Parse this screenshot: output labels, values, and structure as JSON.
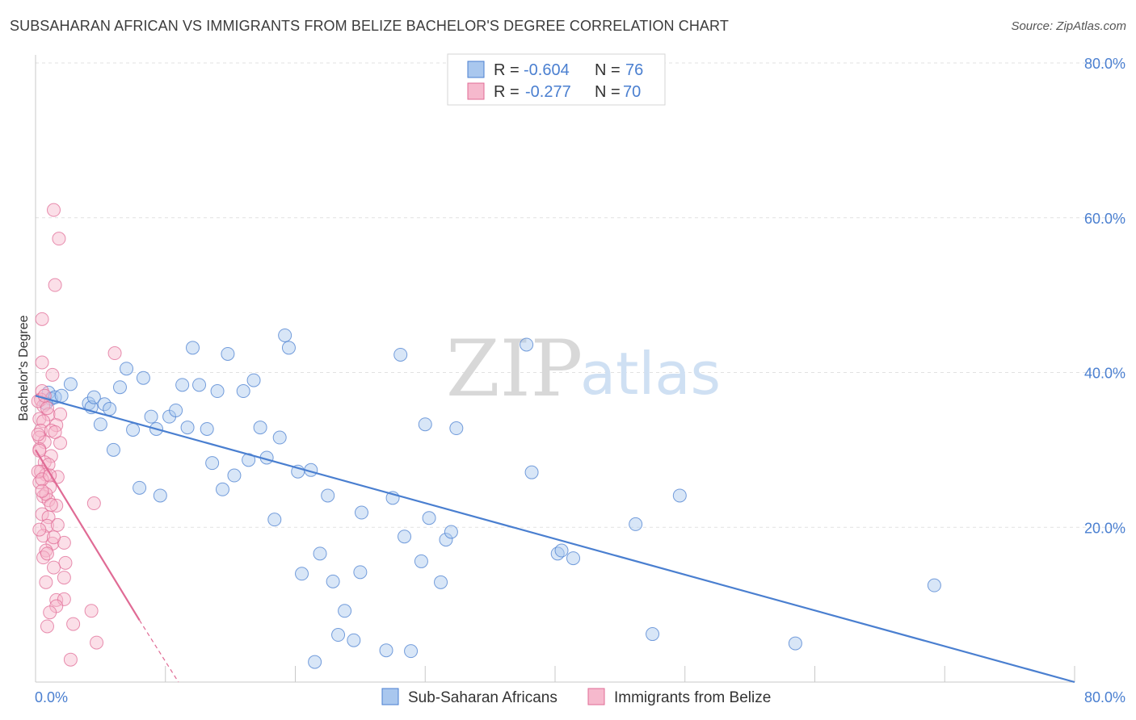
{
  "title": "SUBSAHARAN AFRICAN VS IMMIGRANTS FROM BELIZE BACHELOR'S DEGREE CORRELATION CHART",
  "source": "Source: ZipAtlas.com",
  "watermark": {
    "zip": "ZIP",
    "atlas": "atlas"
  },
  "colors": {
    "blue": "#4a7fd0",
    "blue_fill": "#a9c7ee",
    "pink": "#e06b95",
    "pink_fill": "#f6b9cd"
  },
  "legend_top": {
    "rows": [
      {
        "r_label": "R = ",
        "r_value": "-0.604",
        "n_label": "N = ",
        "n_value": "76"
      },
      {
        "r_label": "R = ",
        "r_value": "-0.277",
        "n_label": "N = ",
        "n_value": "70"
      }
    ]
  },
  "chart_data": {
    "type": "scatter",
    "title": "SUBSAHARAN AFRICAN VS IMMIGRANTS FROM BELIZE BACHELOR'S DEGREE CORRELATION CHART",
    "xlabel": "",
    "ylabel": "Bachelor's Degree",
    "xlim": [
      0,
      80
    ],
    "ylim": [
      0,
      80
    ],
    "y_ticks": [
      "20.0%",
      "40.0%",
      "60.0%",
      "80.0%"
    ],
    "y_tick_values": [
      20,
      40,
      60,
      80
    ],
    "x_tick_labels": {
      "min": "0.0%",
      "max": "80.0%"
    },
    "legend_position": "bottom",
    "series": [
      {
        "name": "Sub-Saharan Africans",
        "color": "#4a7fd0",
        "trend": {
          "x0": 0,
          "y0": 37.0,
          "x1": 80,
          "y1": 0
        },
        "points": [
          [
            1.0,
            37.4
          ],
          [
            1.2,
            36.6
          ],
          [
            1.5,
            36.8
          ],
          [
            2.0,
            37.0
          ],
          [
            2.7,
            38.5
          ],
          [
            4.1,
            36.0
          ],
          [
            4.3,
            35.5
          ],
          [
            4.5,
            36.8
          ],
          [
            5.0,
            33.3
          ],
          [
            5.3,
            35.9
          ],
          [
            5.7,
            35.3
          ],
          [
            6.0,
            30.0
          ],
          [
            6.5,
            38.1
          ],
          [
            7.0,
            40.5
          ],
          [
            7.5,
            32.6
          ],
          [
            8.0,
            25.1
          ],
          [
            8.3,
            39.3
          ],
          [
            8.9,
            34.3
          ],
          [
            9.3,
            32.7
          ],
          [
            9.6,
            24.1
          ],
          [
            10.3,
            34.3
          ],
          [
            10.8,
            35.1
          ],
          [
            11.3,
            38.4
          ],
          [
            11.7,
            32.9
          ],
          [
            12.1,
            43.2
          ],
          [
            12.6,
            38.4
          ],
          [
            13.2,
            32.7
          ],
          [
            13.6,
            28.3
          ],
          [
            14.0,
            37.6
          ],
          [
            14.4,
            24.9
          ],
          [
            14.8,
            42.4
          ],
          [
            15.3,
            26.7
          ],
          [
            16.0,
            37.6
          ],
          [
            16.4,
            28.7
          ],
          [
            16.8,
            39.0
          ],
          [
            17.3,
            32.9
          ],
          [
            17.8,
            29.0
          ],
          [
            18.4,
            21.0
          ],
          [
            18.8,
            31.6
          ],
          [
            19.2,
            44.8
          ],
          [
            19.5,
            43.2
          ],
          [
            20.2,
            27.2
          ],
          [
            20.5,
            14.0
          ],
          [
            21.2,
            27.4
          ],
          [
            21.5,
            2.6
          ],
          [
            21.9,
            16.6
          ],
          [
            22.5,
            24.1
          ],
          [
            22.9,
            13.0
          ],
          [
            23.3,
            6.1
          ],
          [
            23.8,
            9.2
          ],
          [
            24.5,
            5.4
          ],
          [
            25.0,
            14.2
          ],
          [
            25.1,
            21.9
          ],
          [
            27.0,
            4.1
          ],
          [
            27.5,
            23.8
          ],
          [
            28.1,
            42.3
          ],
          [
            28.4,
            18.8
          ],
          [
            28.9,
            4.0
          ],
          [
            29.7,
            15.6
          ],
          [
            30.0,
            33.3
          ],
          [
            30.3,
            21.2
          ],
          [
            31.2,
            12.9
          ],
          [
            31.6,
            18.4
          ],
          [
            32.0,
            19.4
          ],
          [
            32.4,
            32.8
          ],
          [
            37.8,
            43.6
          ],
          [
            38.2,
            27.1
          ],
          [
            40.2,
            16.6
          ],
          [
            40.5,
            17.0
          ],
          [
            41.4,
            16.0
          ],
          [
            46.2,
            20.4
          ],
          [
            47.5,
            6.2
          ],
          [
            49.6,
            24.1
          ],
          [
            58.5,
            5.0
          ],
          [
            69.2,
            12.5
          ],
          [
            0.8,
            36.0
          ]
        ]
      },
      {
        "name": "Immigrants from Belize",
        "color": "#e06b95",
        "trend": {
          "x0": 0,
          "y0": 30.0,
          "x1": 8.0,
          "y1": 8.0,
          "dash_x1": 11.0,
          "dash_y1": 0
        },
        "points": [
          [
            1.4,
            61.0
          ],
          [
            1.8,
            57.3
          ],
          [
            1.5,
            51.3
          ],
          [
            0.5,
            46.9
          ],
          [
            0.5,
            41.3
          ],
          [
            1.3,
            39.7
          ],
          [
            0.5,
            37.6
          ],
          [
            0.4,
            36.5
          ],
          [
            0.6,
            35.7
          ],
          [
            1.0,
            34.6
          ],
          [
            1.9,
            34.6
          ],
          [
            0.3,
            34.0
          ],
          [
            0.6,
            33.7
          ],
          [
            1.6,
            33.2
          ],
          [
            0.4,
            32.5
          ],
          [
            1.2,
            32.5
          ],
          [
            0.3,
            31.6
          ],
          [
            0.7,
            31.0
          ],
          [
            1.9,
            30.9
          ],
          [
            0.3,
            30.1
          ],
          [
            1.2,
            29.2
          ],
          [
            0.7,
            28.4
          ],
          [
            1.0,
            28.1
          ],
          [
            0.4,
            27.2
          ],
          [
            0.8,
            26.8
          ],
          [
            1.7,
            26.5
          ],
          [
            0.3,
            25.8
          ],
          [
            1.1,
            25.2
          ],
          [
            0.6,
            24.0
          ],
          [
            1.0,
            23.5
          ],
          [
            1.6,
            22.8
          ],
          [
            0.5,
            21.7
          ],
          [
            1.0,
            21.3
          ],
          [
            0.9,
            20.2
          ],
          [
            0.6,
            18.9
          ],
          [
            1.3,
            17.9
          ],
          [
            2.2,
            18.0
          ],
          [
            0.8,
            17.0
          ],
          [
            0.6,
            16.1
          ],
          [
            2.3,
            15.4
          ],
          [
            1.4,
            14.8
          ],
          [
            2.2,
            13.5
          ],
          [
            0.8,
            12.9
          ],
          [
            1.6,
            10.6
          ],
          [
            2.2,
            10.7
          ],
          [
            1.6,
            9.8
          ],
          [
            1.1,
            9.0
          ],
          [
            2.9,
            7.5
          ],
          [
            0.9,
            7.2
          ],
          [
            4.5,
            23.1
          ],
          [
            6.1,
            42.5
          ],
          [
            4.3,
            9.2
          ],
          [
            4.7,
            5.1
          ],
          [
            2.7,
            2.9
          ],
          [
            0.2,
            36.3
          ],
          [
            0.2,
            32.0
          ],
          [
            0.3,
            29.9
          ],
          [
            0.2,
            27.2
          ],
          [
            0.5,
            26.2
          ],
          [
            0.8,
            24.3
          ],
          [
            1.2,
            22.9
          ],
          [
            1.7,
            20.3
          ],
          [
            0.9,
            16.6
          ],
          [
            0.3,
            19.7
          ],
          [
            1.4,
            18.7
          ],
          [
            0.5,
            24.7
          ],
          [
            0.9,
            35.4
          ],
          [
            1.5,
            32.3
          ],
          [
            0.7,
            37.0
          ],
          [
            1.1,
            26.7
          ]
        ]
      }
    ]
  }
}
